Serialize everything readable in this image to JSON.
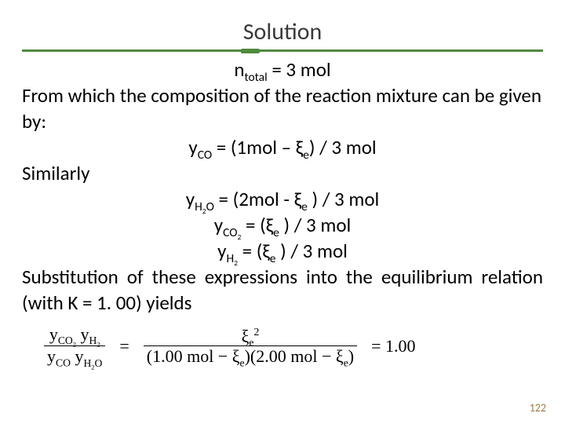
{
  "title": "Solution",
  "colors": {
    "rule": "#4f8a3d",
    "text": "#000000",
    "title": "#3a3a3a",
    "pagenum": "#9b7a45",
    "background": "#ffffff"
  },
  "body": {
    "line1_pre": "n",
    "line1_sub": "total",
    "line1_post": " = 3 mol",
    "line2": "From which the composition of the reaction mixture can be given by:",
    "line3_pre": "y",
    "line3_sub": "CO",
    "line3_post": " = (1mol – ξ",
    "line3_sub2": "e",
    "line3_post2": ") / 3 mol",
    "line4": "Similarly",
    "line5_pre": "y",
    "line5_sub": "H",
    "line5_sub2": "2",
    "line5_sub3": "O",
    "line5_post": " = (2mol - ξ",
    "line5_sub4": "e",
    "line5_post2": " ) / 3 mol",
    "line6_pre": "y",
    "line6_sub": "CO",
    "line6_sub2": "2",
    "line6_post": " = (ξ",
    "line6_sub3": "e",
    "line6_post2": " ) / 3 mol",
    "line7_pre": "y",
    "line7_sub": "H",
    "line7_sub2": "2",
    "line7_post": " = (ξ",
    "line7_sub3": "e",
    "line7_post2": " ) / 3 mol",
    "line8": "Substitution of these expressions into the equilibrium relation (with K = 1. 00) yields"
  },
  "equation": {
    "lhs_num_y1_sub": "CO",
    "lhs_num_y1_sub2": "2",
    "lhs_num_y2_sub": "H",
    "lhs_num_y2_sub2": "2",
    "lhs_den_y1_sub": "CO",
    "lhs_den_y2_sub": "H",
    "lhs_den_y2_sub2": "2",
    "lhs_den_y2_sub3": "O",
    "eq": "=",
    "rhs_num_pre": "ξ",
    "rhs_num_sub": "e",
    "rhs_num_sup": "2",
    "rhs_den": "(1.00 mol − ξ",
    "rhs_den_sub": "e",
    "rhs_den2": ")(2.00 mol − ξ",
    "rhs_den2_sub": "e",
    "rhs_den3": ")",
    "result": "= 1.00"
  },
  "pagenum": "122"
}
